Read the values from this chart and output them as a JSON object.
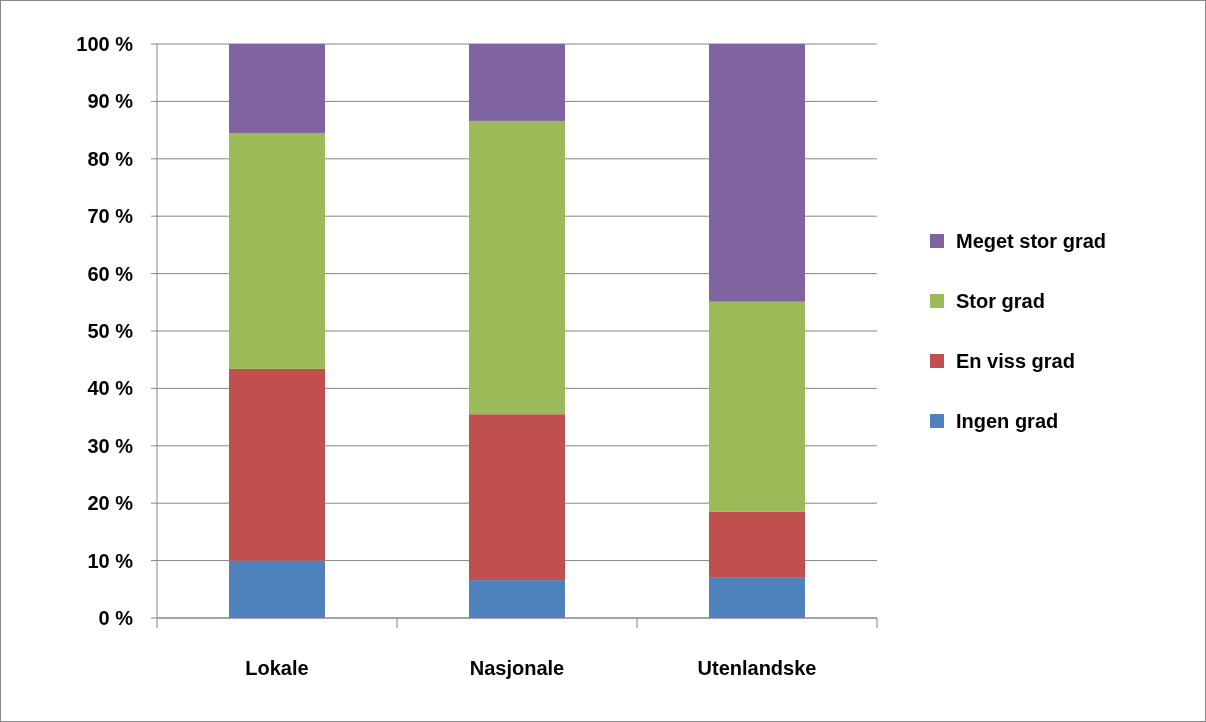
{
  "chart_data": {
    "type": "bar",
    "stacked": true,
    "categories": [
      "Lokale",
      "Nasjonale",
      "Utenlandske"
    ],
    "series": [
      {
        "name": "Ingen grad",
        "color": "#4f81bd",
        "values": [
          10,
          6.6,
          7
        ]
      },
      {
        "name": "En viss grad",
        "color": "#c0504d",
        "values": [
          33.4,
          28.9,
          11.5
        ]
      },
      {
        "name": "Stor grad",
        "color": "#9bbb59",
        "values": [
          41.1,
          51.1,
          36.6
        ]
      },
      {
        "name": "Meget stor grad",
        "color": "#8064a2",
        "values": [
          15.5,
          13.4,
          44.9
        ]
      }
    ],
    "ylim": [
      0,
      100
    ],
    "yticks": [
      {
        "value": 0,
        "label": "0 %"
      },
      {
        "value": 10,
        "label": "10 %"
      },
      {
        "value": 20,
        "label": "20 %"
      },
      {
        "value": 30,
        "label": "30 %"
      },
      {
        "value": 40,
        "label": "40 %"
      },
      {
        "value": 50,
        "label": "50 %"
      },
      {
        "value": 60,
        "label": "60 %"
      },
      {
        "value": 70,
        "label": "70 %"
      },
      {
        "value": 80,
        "label": "80 %"
      },
      {
        "value": 90,
        "label": "90 %"
      },
      {
        "value": 100,
        "label": "100 %"
      }
    ],
    "grid": "y",
    "legend": "right"
  }
}
